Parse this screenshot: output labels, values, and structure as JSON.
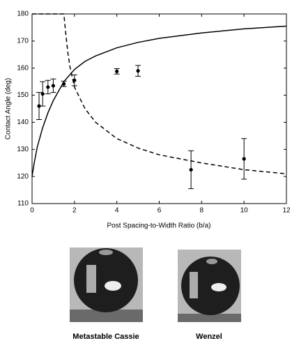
{
  "chart_data": {
    "type": "scatter",
    "xlabel": "Post Spacing-to-Width Ratio (b/a)",
    "ylabel": "Contact Angle (deg)",
    "xlim": [
      0,
      12
    ],
    "xticks": [
      0,
      2,
      4,
      6,
      8,
      10,
      12
    ],
    "ylim": [
      110,
      180
    ],
    "yticks": [
      110,
      120,
      130,
      140,
      150,
      160,
      170,
      180
    ],
    "color": "#000000",
    "series": [
      {
        "type": "line",
        "style": "solid",
        "x": [
          0,
          0.1,
          0.25,
          0.5,
          0.75,
          1,
          1.5,
          2,
          2.5,
          3,
          4,
          5,
          6,
          8,
          10,
          12
        ],
        "values": [
          120,
          125,
          131,
          138,
          143.5,
          148,
          155,
          159.5,
          162.5,
          164.5,
          167.5,
          169.5,
          171,
          173,
          174.5,
          175.5
        ]
      },
      {
        "type": "line",
        "style": "dashed",
        "x": [
          0,
          1.5,
          1.6,
          1.7,
          1.8,
          2,
          2.5,
          3,
          4,
          5,
          6,
          8,
          10,
          12
        ],
        "values": [
          180,
          180,
          172,
          165,
          160,
          153,
          145,
          140,
          134,
          130.5,
          128,
          125,
          122.5,
          121
        ]
      },
      {
        "type": "errorbar",
        "x": [
          0.33,
          0.5,
          0.75,
          1,
          1.5,
          2,
          4,
          5,
          7.5,
          10
        ],
        "values": [
          146,
          150.5,
          153,
          153.5,
          154.2,
          155.5,
          158.8,
          159,
          122.5,
          126.5
        ],
        "errors": [
          5,
          4.5,
          2.5,
          2.5,
          1,
          2,
          1,
          2,
          7,
          7.5
        ]
      }
    ]
  },
  "images": [
    {
      "caption": "Metastable Cassie"
    },
    {
      "caption": "Wenzel"
    }
  ]
}
